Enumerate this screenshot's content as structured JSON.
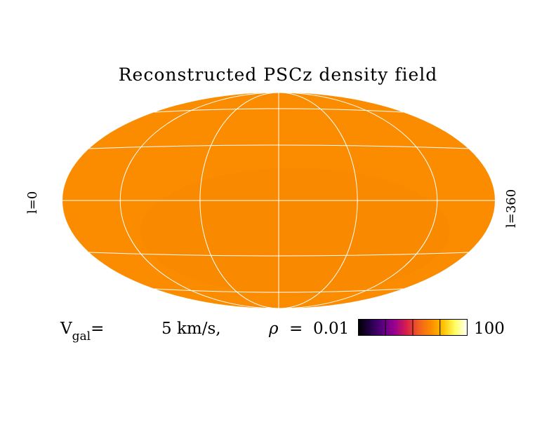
{
  "title": "Reconstructed PSCz density field",
  "axis_left_label": "l=0",
  "axis_right_label": "l=360",
  "legend": {
    "vgal_symbol": "V",
    "vgal_subscript": "gal",
    "vgal_equals": "=",
    "vgal_value": "5 km/s,",
    "rho_symbol": "ρ",
    "rho_equals": "=",
    "rho_min": "0.01",
    "rho_max": "100"
  },
  "colors": {
    "map_fill": "#fb8c00",
    "map_patch": "#f88800",
    "graticule": "#ffffff",
    "colorbar": [
      "#000000",
      "#26004a",
      "#5a0080",
      "#9a0090",
      "#d8204a",
      "#f26020",
      "#fb8c00",
      "#ffc000",
      "#ffff60",
      "#ffffff"
    ]
  }
}
